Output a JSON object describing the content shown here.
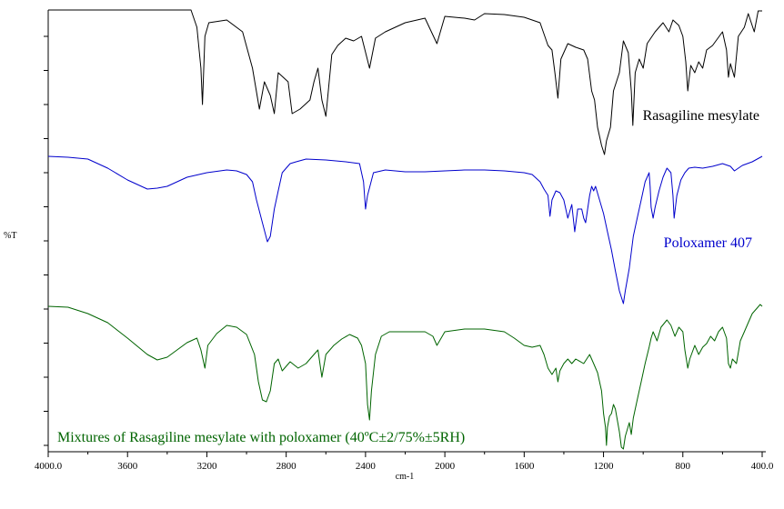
{
  "chart_data": {
    "type": "line",
    "title": "",
    "xlabel": "cm-1",
    "ylabel": "%T",
    "xlim": [
      4000,
      400
    ],
    "x_reversed": true,
    "xticks": [
      "4000.0",
      "3600",
      "3200",
      "2800",
      "2400",
      "2000",
      "1600",
      "1200",
      "800",
      "400.0"
    ],
    "grid": false,
    "series": [
      {
        "name": "Rasagiline mesylate",
        "color": "#000000",
        "points": [
          [
            4000,
            11
          ],
          [
            3600,
            11
          ],
          [
            3280,
            11
          ],
          [
            3250,
            30
          ],
          [
            3230,
            75
          ],
          [
            3222,
            115
          ],
          [
            3210,
            40
          ],
          [
            3190,
            25
          ],
          [
            3100,
            22
          ],
          [
            3020,
            35
          ],
          [
            2970,
            75
          ],
          [
            2935,
            120
          ],
          [
            2910,
            90
          ],
          [
            2880,
            105
          ],
          [
            2860,
            125
          ],
          [
            2840,
            80
          ],
          [
            2790,
            90
          ],
          [
            2770,
            125
          ],
          [
            2730,
            120
          ],
          [
            2680,
            110
          ],
          [
            2660,
            90
          ],
          [
            2640,
            75
          ],
          [
            2620,
            110
          ],
          [
            2600,
            128
          ],
          [
            2570,
            60
          ],
          [
            2540,
            50
          ],
          [
            2500,
            42
          ],
          [
            2460,
            45
          ],
          [
            2420,
            40
          ],
          [
            2380,
            75
          ],
          [
            2350,
            42
          ],
          [
            2300,
            35
          ],
          [
            2200,
            25
          ],
          [
            2100,
            20
          ],
          [
            2040,
            48
          ],
          [
            2000,
            18
          ],
          [
            1900,
            20
          ],
          [
            1850,
            22
          ],
          [
            1800,
            15
          ],
          [
            1700,
            16
          ],
          [
            1600,
            19
          ],
          [
            1560,
            22
          ],
          [
            1520,
            25
          ],
          [
            1480,
            50
          ],
          [
            1460,
            55
          ],
          [
            1445,
            80
          ],
          [
            1430,
            108
          ],
          [
            1415,
            65
          ],
          [
            1380,
            48
          ],
          [
            1340,
            52
          ],
          [
            1300,
            55
          ],
          [
            1280,
            65
          ],
          [
            1260,
            100
          ],
          [
            1245,
            110
          ],
          [
            1230,
            140
          ],
          [
            1210,
            160
          ],
          [
            1195,
            170
          ],
          [
            1185,
            155
          ],
          [
            1165,
            140
          ],
          [
            1150,
            100
          ],
          [
            1120,
            80
          ],
          [
            1100,
            45
          ],
          [
            1075,
            58
          ],
          [
            1060,
            100
          ],
          [
            1052,
            138
          ],
          [
            1040,
            80
          ],
          [
            1020,
            65
          ],
          [
            1000,
            75
          ],
          [
            980,
            48
          ],
          [
            940,
            35
          ],
          [
            900,
            25
          ],
          [
            870,
            35
          ],
          [
            850,
            22
          ],
          [
            820,
            28
          ],
          [
            800,
            40
          ],
          [
            785,
            68
          ],
          [
            775,
            100
          ],
          [
            770,
            90
          ],
          [
            760,
            72
          ],
          [
            740,
            80
          ],
          [
            720,
            68
          ],
          [
            700,
            75
          ],
          [
            680,
            55
          ],
          [
            650,
            50
          ],
          [
            600,
            35
          ],
          [
            580,
            55
          ],
          [
            570,
            85
          ],
          [
            560,
            70
          ],
          [
            540,
            85
          ],
          [
            520,
            40
          ],
          [
            490,
            30
          ],
          [
            470,
            15
          ],
          [
            440,
            35
          ],
          [
            420,
            12
          ],
          [
            400,
            12
          ]
        ]
      },
      {
        "name": "Poloxamer 407",
        "color": "#0000cc",
        "points": [
          [
            4000,
            172
          ],
          [
            3900,
            173
          ],
          [
            3800,
            175
          ],
          [
            3700,
            185
          ],
          [
            3600,
            198
          ],
          [
            3500,
            208
          ],
          [
            3450,
            207
          ],
          [
            3400,
            205
          ],
          [
            3300,
            195
          ],
          [
            3200,
            190
          ],
          [
            3100,
            187
          ],
          [
            3050,
            188
          ],
          [
            3000,
            192
          ],
          [
            2970,
            200
          ],
          [
            2950,
            220
          ],
          [
            2920,
            245
          ],
          [
            2895,
            266
          ],
          [
            2880,
            260
          ],
          [
            2860,
            230
          ],
          [
            2840,
            210
          ],
          [
            2820,
            190
          ],
          [
            2780,
            180
          ],
          [
            2750,
            178
          ],
          [
            2700,
            175
          ],
          [
            2600,
            176
          ],
          [
            2500,
            178
          ],
          [
            2430,
            180
          ],
          [
            2410,
            200
          ],
          [
            2400,
            230
          ],
          [
            2390,
            215
          ],
          [
            2360,
            190
          ],
          [
            2300,
            187
          ],
          [
            2200,
            189
          ],
          [
            2100,
            189
          ],
          [
            2000,
            188
          ],
          [
            1900,
            187
          ],
          [
            1800,
            187
          ],
          [
            1700,
            188
          ],
          [
            1600,
            190
          ],
          [
            1560,
            192
          ],
          [
            1520,
            200
          ],
          [
            1500,
            208
          ],
          [
            1480,
            215
          ],
          [
            1470,
            238
          ],
          [
            1460,
            220
          ],
          [
            1440,
            210
          ],
          [
            1420,
            212
          ],
          [
            1400,
            220
          ],
          [
            1380,
            240
          ],
          [
            1360,
            225
          ],
          [
            1345,
            255
          ],
          [
            1330,
            230
          ],
          [
            1310,
            230
          ],
          [
            1300,
            240
          ],
          [
            1290,
            245
          ],
          [
            1270,
            215
          ],
          [
            1260,
            205
          ],
          [
            1250,
            210
          ],
          [
            1240,
            205
          ],
          [
            1220,
            220
          ],
          [
            1200,
            235
          ],
          [
            1180,
            255
          ],
          [
            1160,
            275
          ],
          [
            1140,
            298
          ],
          [
            1120,
            320
          ],
          [
            1100,
            334
          ],
          [
            1090,
            320
          ],
          [
            1070,
            295
          ],
          [
            1050,
            260
          ],
          [
            1030,
            240
          ],
          [
            1010,
            220
          ],
          [
            990,
            200
          ],
          [
            970,
            190
          ],
          [
            965,
            205
          ],
          [
            960,
            228
          ],
          [
            950,
            240
          ],
          [
            940,
            228
          ],
          [
            920,
            210
          ],
          [
            900,
            195
          ],
          [
            880,
            185
          ],
          [
            860,
            190
          ],
          [
            850,
            215
          ],
          [
            844,
            240
          ],
          [
            830,
            215
          ],
          [
            810,
            198
          ],
          [
            790,
            190
          ],
          [
            770,
            185
          ],
          [
            740,
            184
          ],
          [
            700,
            185
          ],
          [
            650,
            183
          ],
          [
            600,
            180
          ],
          [
            560,
            183
          ],
          [
            540,
            188
          ],
          [
            500,
            182
          ],
          [
            450,
            178
          ],
          [
            400,
            172
          ]
        ]
      },
      {
        "name": "Mixtures of Rasagiline mesylate with poloxamer (40ºC±2/75%±5RH)",
        "color": "#006400",
        "points": [
          [
            4000,
            337
          ],
          [
            3900,
            338
          ],
          [
            3800,
            345
          ],
          [
            3700,
            355
          ],
          [
            3600,
            372
          ],
          [
            3500,
            390
          ],
          [
            3450,
            396
          ],
          [
            3400,
            393
          ],
          [
            3350,
            385
          ],
          [
            3300,
            377
          ],
          [
            3250,
            372
          ],
          [
            3230,
            385
          ],
          [
            3210,
            405
          ],
          [
            3195,
            380
          ],
          [
            3150,
            367
          ],
          [
            3100,
            358
          ],
          [
            3050,
            360
          ],
          [
            3000,
            368
          ],
          [
            2960,
            390
          ],
          [
            2940,
            420
          ],
          [
            2920,
            440
          ],
          [
            2900,
            442
          ],
          [
            2880,
            430
          ],
          [
            2860,
            400
          ],
          [
            2840,
            395
          ],
          [
            2820,
            408
          ],
          [
            2780,
            398
          ],
          [
            2740,
            405
          ],
          [
            2700,
            400
          ],
          [
            2660,
            390
          ],
          [
            2640,
            385
          ],
          [
            2620,
            415
          ],
          [
            2600,
            390
          ],
          [
            2560,
            380
          ],
          [
            2520,
            373
          ],
          [
            2480,
            368
          ],
          [
            2440,
            372
          ],
          [
            2420,
            380
          ],
          [
            2400,
            400
          ],
          [
            2390,
            445
          ],
          [
            2380,
            462
          ],
          [
            2370,
            430
          ],
          [
            2350,
            390
          ],
          [
            2320,
            370
          ],
          [
            2280,
            365
          ],
          [
            2200,
            365
          ],
          [
            2100,
            365
          ],
          [
            2060,
            370
          ],
          [
            2040,
            380
          ],
          [
            2000,
            365
          ],
          [
            1900,
            362
          ],
          [
            1800,
            362
          ],
          [
            1700,
            365
          ],
          [
            1650,
            372
          ],
          [
            1600,
            380
          ],
          [
            1560,
            382
          ],
          [
            1520,
            380
          ],
          [
            1500,
            390
          ],
          [
            1480,
            405
          ],
          [
            1460,
            412
          ],
          [
            1440,
            405
          ],
          [
            1430,
            420
          ],
          [
            1420,
            408
          ],
          [
            1400,
            400
          ],
          [
            1380,
            395
          ],
          [
            1360,
            400
          ],
          [
            1340,
            395
          ],
          [
            1300,
            400
          ],
          [
            1270,
            390
          ],
          [
            1250,
            400
          ],
          [
            1230,
            410
          ],
          [
            1210,
            430
          ],
          [
            1200,
            455
          ],
          [
            1190,
            470
          ],
          [
            1185,
            490
          ],
          [
            1180,
            470
          ],
          [
            1170,
            458
          ],
          [
            1160,
            455
          ],
          [
            1150,
            445
          ],
          [
            1140,
            450
          ],
          [
            1120,
            475
          ],
          [
            1110,
            492
          ],
          [
            1100,
            494
          ],
          [
            1090,
            480
          ],
          [
            1070,
            465
          ],
          [
            1060,
            478
          ],
          [
            1050,
            460
          ],
          [
            1030,
            440
          ],
          [
            1010,
            420
          ],
          [
            990,
            400
          ],
          [
            970,
            382
          ],
          [
            960,
            372
          ],
          [
            950,
            365
          ],
          [
            930,
            375
          ],
          [
            910,
            360
          ],
          [
            880,
            352
          ],
          [
            860,
            358
          ],
          [
            840,
            370
          ],
          [
            820,
            360
          ],
          [
            800,
            365
          ],
          [
            790,
            385
          ],
          [
            775,
            405
          ],
          [
            765,
            395
          ],
          [
            740,
            380
          ],
          [
            720,
            390
          ],
          [
            700,
            382
          ],
          [
            680,
            378
          ],
          [
            660,
            370
          ],
          [
            640,
            375
          ],
          [
            620,
            365
          ],
          [
            600,
            360
          ],
          [
            580,
            372
          ],
          [
            570,
            400
          ],
          [
            560,
            405
          ],
          [
            550,
            395
          ],
          [
            530,
            400
          ],
          [
            510,
            375
          ],
          [
            490,
            365
          ],
          [
            470,
            355
          ],
          [
            450,
            345
          ],
          [
            430,
            340
          ],
          [
            410,
            335
          ],
          [
            400,
            337
          ]
        ]
      }
    ]
  }
}
